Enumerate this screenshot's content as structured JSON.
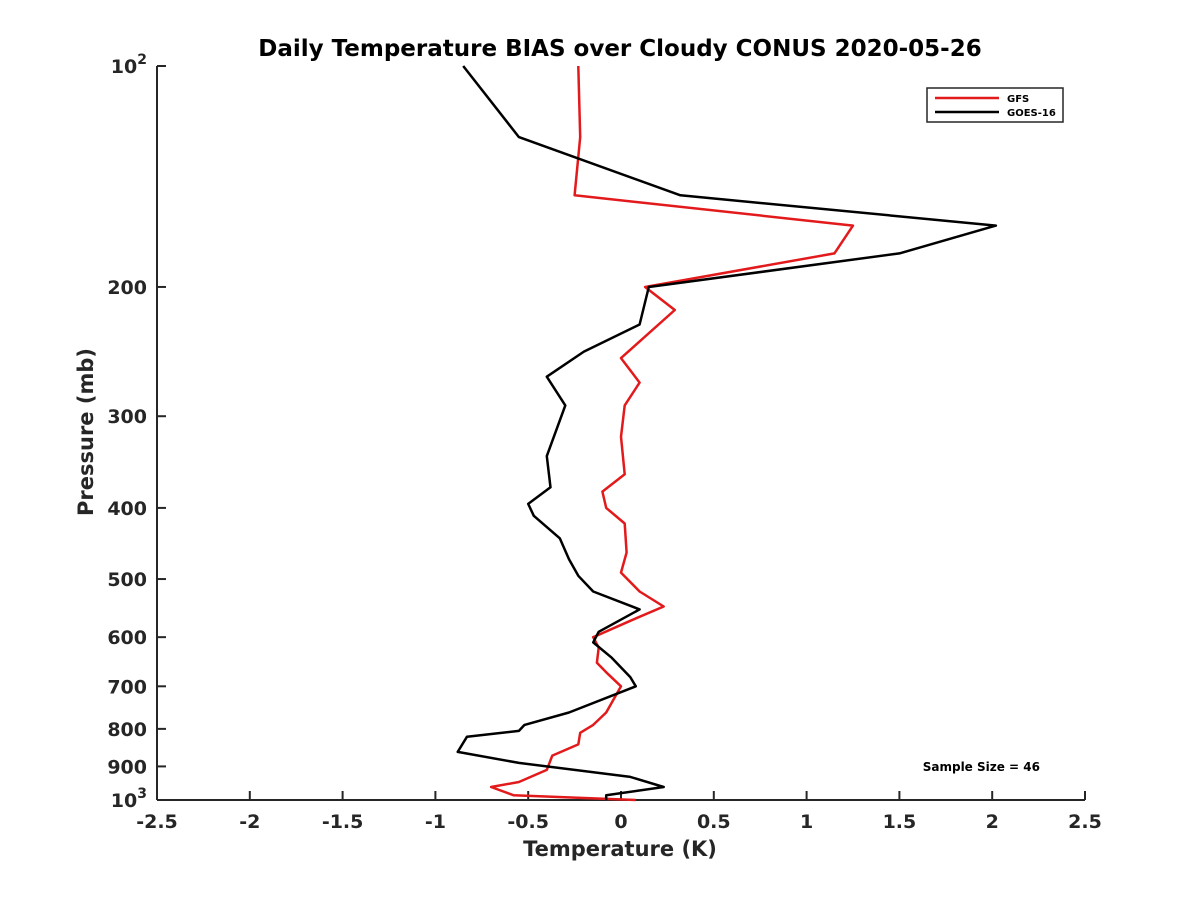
{
  "chart_data": {
    "type": "line",
    "title": "Daily Temperature BIAS over Cloudy CONUS 2020-05-26",
    "xlabel": "Temperature (K)",
    "ylabel": "Pressure (mb)",
    "xlim": [
      -2.5,
      2.5
    ],
    "ylim": [
      100,
      1000
    ],
    "y_scale": "log",
    "y_reversed": true,
    "x_ticks": [
      -2.5,
      -2,
      -1.5,
      -1,
      -0.5,
      0,
      0.5,
      1,
      1.5,
      2,
      2.5
    ],
    "x_tick_labels": [
      "-2.5",
      "-2",
      "-1.5",
      "-1",
      "-0.5",
      "0",
      "0.5",
      "1",
      "1.5",
      "2",
      "2.5"
    ],
    "y_ticks": [
      100,
      200,
      300,
      400,
      500,
      600,
      700,
      800,
      900,
      1000
    ],
    "y_tick_labels": [
      {
        "base": "10",
        "exp": "2"
      },
      {
        "base": "200",
        "exp": ""
      },
      {
        "base": "300",
        "exp": ""
      },
      {
        "base": "400",
        "exp": ""
      },
      {
        "base": "500",
        "exp": ""
      },
      {
        "base": "600",
        "exp": ""
      },
      {
        "base": "700",
        "exp": ""
      },
      {
        "base": "800",
        "exp": ""
      },
      {
        "base": "900",
        "exp": ""
      },
      {
        "base": "10",
        "exp": "3"
      }
    ],
    "grid": false,
    "legend_position": "top-right",
    "annotation": "Sample Size = 46",
    "series": [
      {
        "name": "GFS",
        "color": "#e31a1c",
        "points": [
          [
            -0.23,
            100
          ],
          [
            -0.22,
            125
          ],
          [
            -0.25,
            150
          ],
          [
            1.25,
            165
          ],
          [
            1.15,
            180
          ],
          [
            0.13,
            200
          ],
          [
            0.29,
            215
          ],
          [
            0.0,
            250
          ],
          [
            0.1,
            270
          ],
          [
            0.02,
            290
          ],
          [
            0.0,
            320
          ],
          [
            0.02,
            360
          ],
          [
            -0.1,
            380
          ],
          [
            -0.08,
            400
          ],
          [
            0.02,
            420
          ],
          [
            0.03,
            460
          ],
          [
            0.0,
            490
          ],
          [
            0.1,
            520
          ],
          [
            0.23,
            545
          ],
          [
            0.05,
            570
          ],
          [
            -0.15,
            600
          ],
          [
            -0.12,
            620
          ],
          [
            -0.13,
            650
          ],
          [
            -0.08,
            670
          ],
          [
            0.0,
            700
          ],
          [
            -0.08,
            760
          ],
          [
            -0.15,
            790
          ],
          [
            -0.22,
            810
          ],
          [
            -0.23,
            840
          ],
          [
            -0.37,
            870
          ],
          [
            -0.4,
            910
          ],
          [
            -0.55,
            945
          ],
          [
            -0.7,
            960
          ],
          [
            -0.58,
            985
          ],
          [
            0.08,
            1000
          ]
        ]
      },
      {
        "name": "GOES-16",
        "color": "#000000",
        "points": [
          [
            -0.85,
            100
          ],
          [
            -0.55,
            125
          ],
          [
            0.32,
            150
          ],
          [
            2.02,
            165
          ],
          [
            1.5,
            180
          ],
          [
            0.15,
            200
          ],
          [
            0.1,
            225
          ],
          [
            -0.2,
            245
          ],
          [
            -0.4,
            265
          ],
          [
            -0.3,
            290
          ],
          [
            -0.4,
            340
          ],
          [
            -0.38,
            375
          ],
          [
            -0.5,
            395
          ],
          [
            -0.47,
            410
          ],
          [
            -0.33,
            440
          ],
          [
            -0.28,
            470
          ],
          [
            -0.23,
            495
          ],
          [
            -0.15,
            520
          ],
          [
            0.1,
            550
          ],
          [
            -0.12,
            590
          ],
          [
            -0.15,
            610
          ],
          [
            -0.05,
            640
          ],
          [
            0.05,
            680
          ],
          [
            0.08,
            700
          ],
          [
            -0.28,
            760
          ],
          [
            -0.52,
            790
          ],
          [
            -0.55,
            805
          ],
          [
            -0.83,
            820
          ],
          [
            -0.88,
            860
          ],
          [
            -0.55,
            890
          ],
          [
            0.05,
            930
          ],
          [
            0.23,
            960
          ],
          [
            -0.08,
            985
          ],
          [
            -0.08,
            1000
          ]
        ]
      }
    ]
  }
}
